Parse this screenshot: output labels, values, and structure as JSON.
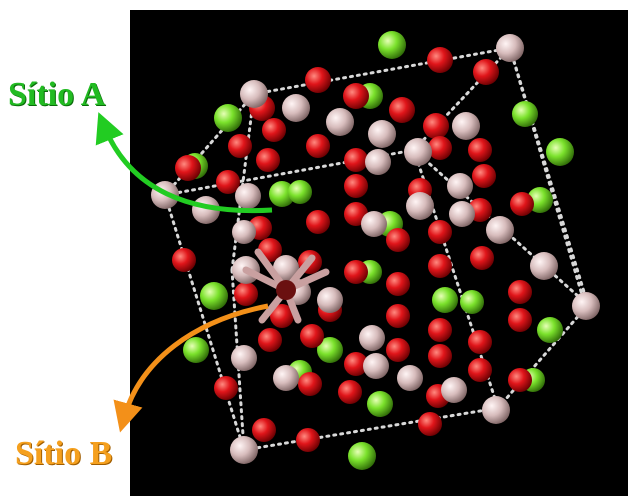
{
  "labels": {
    "site_a": "Sítio A",
    "site_b": "Sítio B"
  },
  "colors": {
    "background": "#000000",
    "site_a_atom": "#7be22c",
    "oxygen_atom": "#e0151a",
    "b_site_atom": "#d7bcbc",
    "cell_edges": "#d8d8d8",
    "site_a_text": "#22bb22",
    "site_b_text": "#f5a01e"
  }
}
